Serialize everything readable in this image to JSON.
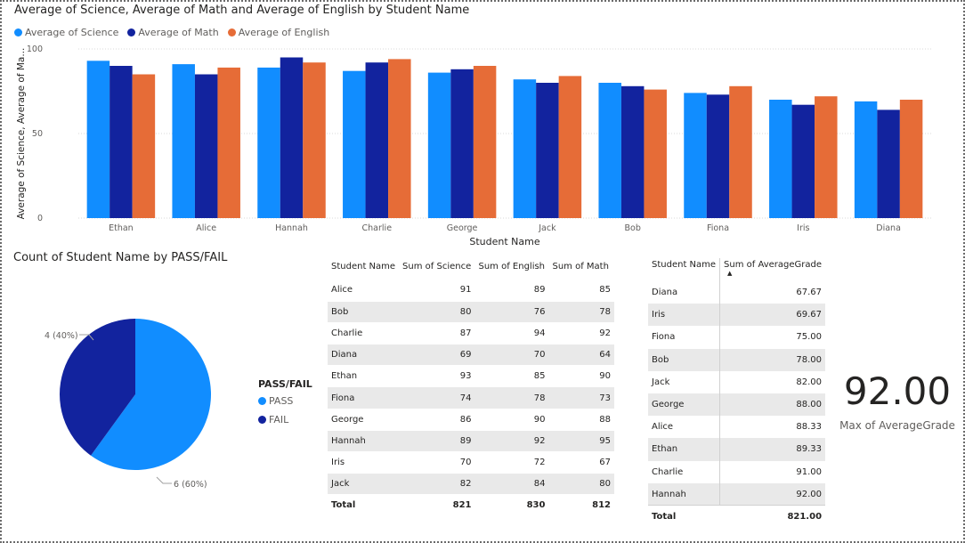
{
  "colors": {
    "science": "#118dff",
    "math": "#12239e",
    "english": "#e66c37",
    "pass": "#118dff",
    "fail": "#12239e"
  },
  "chart_data": [
    {
      "type": "bar",
      "title": "Average of Science, Average of Math and Average of English by Student Name",
      "xlabel": "Student Name",
      "ylabel": "Average of Science, Average of Ma...",
      "ylim": [
        0,
        100
      ],
      "yticks": [
        0,
        50,
        100
      ],
      "grid": true,
      "legend": "top-left",
      "categories": [
        "Ethan",
        "Alice",
        "Hannah",
        "Charlie",
        "George",
        "Jack",
        "Bob",
        "Fiona",
        "Iris",
        "Diana"
      ],
      "series": [
        {
          "name": "Average of Science",
          "values": [
            93,
            91,
            89,
            87,
            86,
            82,
            80,
            74,
            70,
            69
          ]
        },
        {
          "name": "Average of Math",
          "values": [
            90,
            85,
            95,
            92,
            88,
            80,
            78,
            73,
            67,
            64
          ]
        },
        {
          "name": "Average of English",
          "values": [
            85,
            89,
            92,
            94,
            90,
            84,
            76,
            78,
            72,
            70
          ]
        }
      ]
    },
    {
      "type": "pie",
      "title": "Count of Student Name by PASS/FAIL",
      "legend_title": "PASS/FAIL",
      "legend": "right",
      "labels": [
        "PASS",
        "FAIL"
      ],
      "values": [
        6,
        4
      ],
      "data_labels": [
        "6 (60%)",
        "4 (40%)"
      ]
    }
  ],
  "table1": {
    "headers": [
      "Student Name",
      "Sum of Science",
      "Sum of English",
      "Sum of Math"
    ],
    "rows": [
      [
        "Alice",
        "91",
        "89",
        "85"
      ],
      [
        "Bob",
        "80",
        "76",
        "78"
      ],
      [
        "Charlie",
        "87",
        "94",
        "92"
      ],
      [
        "Diana",
        "69",
        "70",
        "64"
      ],
      [
        "Ethan",
        "93",
        "85",
        "90"
      ],
      [
        "Fiona",
        "74",
        "78",
        "73"
      ],
      [
        "George",
        "86",
        "90",
        "88"
      ],
      [
        "Hannah",
        "89",
        "92",
        "95"
      ],
      [
        "Iris",
        "70",
        "72",
        "67"
      ],
      [
        "Jack",
        "82",
        "84",
        "80"
      ]
    ],
    "total": [
      "Total",
      "821",
      "830",
      "812"
    ]
  },
  "table2": {
    "headers": [
      "Student Name",
      "Sum of AverageGrade"
    ],
    "sort_indicator": "▲",
    "rows": [
      [
        "Diana",
        "67.67"
      ],
      [
        "Iris",
        "69.67"
      ],
      [
        "Fiona",
        "75.00"
      ],
      [
        "Bob",
        "78.00"
      ],
      [
        "Jack",
        "82.00"
      ],
      [
        "George",
        "88.00"
      ],
      [
        "Alice",
        "88.33"
      ],
      [
        "Ethan",
        "89.33"
      ],
      [
        "Charlie",
        "91.00"
      ],
      [
        "Hannah",
        "92.00"
      ]
    ],
    "total": [
      "Total",
      "821.00"
    ]
  },
  "kpi": {
    "value": "92.00",
    "label": "Max of AverageGrade"
  }
}
